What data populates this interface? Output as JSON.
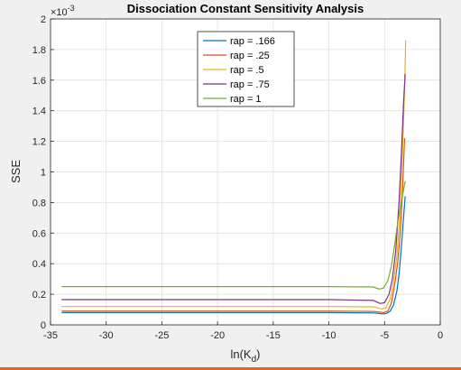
{
  "chart_data": {
    "type": "line",
    "title": "Dissociation Constant Sensitivity Analysis",
    "xlabel_main": "ln(K",
    "xlabel_sub": "d",
    "xlabel_close": ")",
    "ylabel": "SSE",
    "y_exponent_prefix": "×10",
    "y_exponent_power": "-3",
    "xlim": [
      -35,
      0
    ],
    "ylim": [
      0,
      2
    ],
    "x_ticks": [
      -35,
      -30,
      -25,
      -20,
      -15,
      -10,
      -5,
      0
    ],
    "y_ticks": [
      0,
      0.2,
      0.4,
      0.6,
      0.8,
      1,
      1.2,
      1.4,
      1.6,
      1.8,
      2
    ],
    "y_tick_labels": [
      "0",
      "0.2",
      "0.4",
      "0.6",
      "0.8",
      "1",
      "1.2",
      "1.4",
      "1.6",
      "1.8",
      "2"
    ],
    "grid": true,
    "legend_position": "top-center",
    "series": [
      {
        "name": "rap = .166",
        "color": "#0072BD",
        "points": [
          [
            -34,
            0.08
          ],
          [
            -20,
            0.08
          ],
          [
            -10,
            0.08
          ],
          [
            -6,
            0.078
          ],
          [
            -5.2,
            0.072
          ],
          [
            -4.8,
            0.075
          ],
          [
            -4.5,
            0.09
          ],
          [
            -4.2,
            0.13
          ],
          [
            -3.9,
            0.22
          ],
          [
            -3.7,
            0.33
          ],
          [
            -3.5,
            0.5
          ],
          [
            -3.3,
            0.7
          ],
          [
            -3.15,
            0.84
          ]
        ]
      },
      {
        "name": "rap = .25",
        "color": "#D95319",
        "points": [
          [
            -34,
            0.09
          ],
          [
            -20,
            0.09
          ],
          [
            -10,
            0.09
          ],
          [
            -6,
            0.088
          ],
          [
            -5.1,
            0.08
          ],
          [
            -4.7,
            0.09
          ],
          [
            -4.4,
            0.14
          ],
          [
            -4.1,
            0.26
          ],
          [
            -3.8,
            0.42
          ],
          [
            -3.6,
            0.6
          ],
          [
            -3.4,
            0.85
          ],
          [
            -3.3,
            1.05
          ],
          [
            -3.2,
            1.22
          ]
        ]
      },
      {
        "name": "rap = .5",
        "color": "#EDB120",
        "points": [
          [
            -34,
            0.12
          ],
          [
            -20,
            0.12
          ],
          [
            -10,
            0.12
          ],
          [
            -6,
            0.118
          ],
          [
            -5.3,
            0.105
          ],
          [
            -4.9,
            0.11
          ],
          [
            -4.5,
            0.17
          ],
          [
            -4.2,
            0.28
          ],
          [
            -3.9,
            0.45
          ],
          [
            -3.6,
            0.75
          ],
          [
            -3.4,
            1.1
          ],
          [
            -3.2,
            1.55
          ],
          [
            -3.1,
            1.86
          ]
        ]
      },
      {
        "name": "rap = .75",
        "color": "#7E2F8E",
        "points": [
          [
            -34,
            0.165
          ],
          [
            -20,
            0.165
          ],
          [
            -10,
            0.165
          ],
          [
            -6,
            0.16
          ],
          [
            -5.4,
            0.14
          ],
          [
            -5,
            0.145
          ],
          [
            -4.6,
            0.2
          ],
          [
            -4.3,
            0.3
          ],
          [
            -4,
            0.48
          ],
          [
            -3.7,
            0.8
          ],
          [
            -3.5,
            1.1
          ],
          [
            -3.3,
            1.45
          ],
          [
            -3.15,
            1.64
          ]
        ]
      },
      {
        "name": "rap = 1",
        "color": "#77AC30",
        "points": [
          [
            -34,
            0.25
          ],
          [
            -20,
            0.25
          ],
          [
            -10,
            0.25
          ],
          [
            -6,
            0.248
          ],
          [
            -5.5,
            0.235
          ],
          [
            -5.1,
            0.24
          ],
          [
            -4.7,
            0.29
          ],
          [
            -4.4,
            0.38
          ],
          [
            -4.1,
            0.52
          ],
          [
            -3.8,
            0.68
          ],
          [
            -3.5,
            0.8
          ],
          [
            -3.3,
            0.88
          ],
          [
            -3.15,
            0.94
          ]
        ]
      }
    ]
  }
}
